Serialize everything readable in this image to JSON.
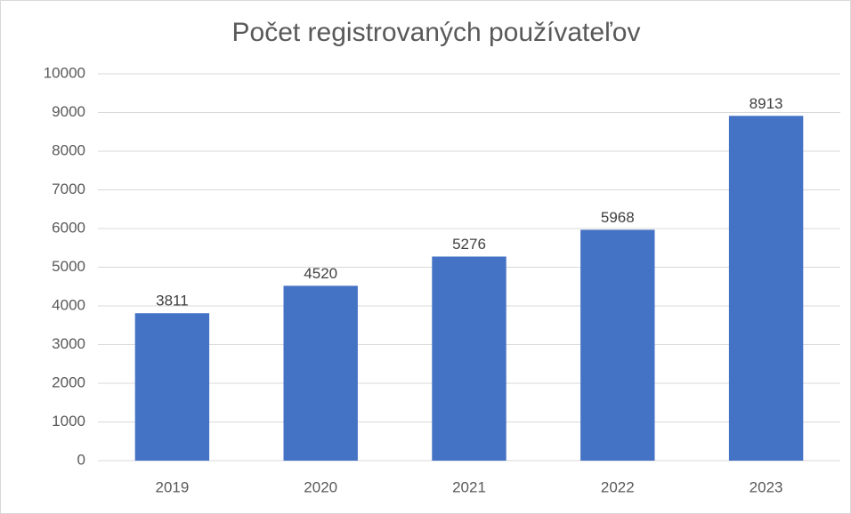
{
  "chart_data": {
    "type": "bar",
    "title": "Počet registrovaných používateľov",
    "categories": [
      "2019",
      "2020",
      "2021",
      "2022",
      "2023"
    ],
    "values": [
      3811,
      4520,
      5276,
      5968,
      8913
    ],
    "color": "#4472c4",
    "ylim": [
      0,
      10000
    ],
    "yticks": [
      0,
      1000,
      2000,
      3000,
      4000,
      5000,
      6000,
      7000,
      8000,
      9000,
      10000
    ],
    "grid": true,
    "data_labels": true
  }
}
